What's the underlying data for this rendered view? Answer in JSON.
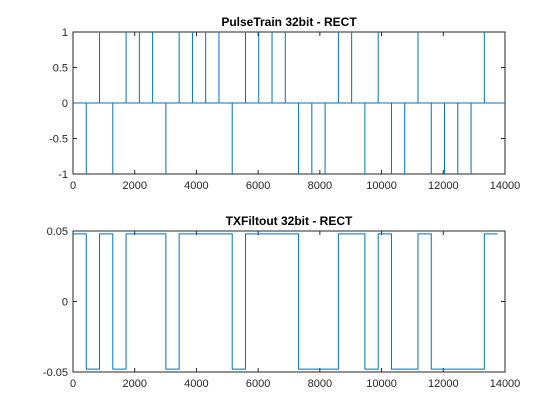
{
  "chart_data": [
    {
      "type": "line",
      "title": "PulseTrain 32bit - RECT",
      "xlabel": "",
      "ylabel": "",
      "xlim": [
        0,
        14000
      ],
      "ylim": [
        -1,
        1
      ],
      "xticks": [
        0,
        2000,
        4000,
        6000,
        8000,
        10000,
        12000,
        14000
      ],
      "xtick_labels": [
        "0",
        "2000",
        "4000",
        "6000",
        "8000",
        "10000",
        "12000",
        "14000"
      ],
      "yticks": [
        1,
        0.5,
        0,
        -0.5,
        -1
      ],
      "ytick_labels": [
        "1",
        "0.5",
        "0",
        "-0.5",
        "-1"
      ],
      "grid": false,
      "color": "#0072bd",
      "series": [
        {
          "pulses": [
            {
              "x": 430,
              "y": -1
            },
            {
              "x": 860,
              "y": 1
            },
            {
              "x": 1290,
              "y": -1
            },
            {
              "x": 1720,
              "y": 1
            },
            {
              "x": 2150,
              "y": 1
            },
            {
              "x": 2580,
              "y": 1
            },
            {
              "x": 3010,
              "y": -1
            },
            {
              "x": 3440,
              "y": 1
            },
            {
              "x": 3870,
              "y": 1
            },
            {
              "x": 4300,
              "y": 1
            },
            {
              "x": 4730,
              "y": 1
            },
            {
              "x": 5160,
              "y": -1
            },
            {
              "x": 5590,
              "y": 1
            },
            {
              "x": 6020,
              "y": 1
            },
            {
              "x": 6450,
              "y": 1
            },
            {
              "x": 6880,
              "y": 1
            },
            {
              "x": 7310,
              "y": -1
            },
            {
              "x": 7740,
              "y": -1
            },
            {
              "x": 8170,
              "y": -1
            },
            {
              "x": 8600,
              "y": 1
            },
            {
              "x": 9030,
              "y": 1
            },
            {
              "x": 9460,
              "y": -1
            },
            {
              "x": 9890,
              "y": 1
            },
            {
              "x": 10320,
              "y": -1
            },
            {
              "x": 10750,
              "y": -1
            },
            {
              "x": 11180,
              "y": 1
            },
            {
              "x": 11610,
              "y": -1
            },
            {
              "x": 12040,
              "y": -1
            },
            {
              "x": 12470,
              "y": -1
            },
            {
              "x": 12900,
              "y": -1
            },
            {
              "x": 13330,
              "y": 1
            }
          ]
        }
      ]
    },
    {
      "type": "line",
      "title": "TXFiltout 32bit - RECT",
      "xlabel": "",
      "ylabel": "",
      "xlim": [
        0,
        14000
      ],
      "ylim": [
        -0.05,
        0.05
      ],
      "xticks": [
        0,
        2000,
        4000,
        6000,
        8000,
        10000,
        12000,
        14000
      ],
      "xtick_labels": [
        "0",
        "2000",
        "4000",
        "6000",
        "8000",
        "10000",
        "12000",
        "14000"
      ],
      "yticks": [
        0.05,
        0,
        -0.05
      ],
      "ytick_labels": [
        "0.05",
        "0",
        "-0.05"
      ],
      "grid": false,
      "color": "#0072bd",
      "series": [
        {
          "x": [
            0,
            430,
            430,
            860,
            860,
            1290,
            1290,
            1720,
            1720,
            3010,
            3010,
            3440,
            3440,
            5160,
            5160,
            5590,
            5590,
            7310,
            7310,
            8600,
            8600,
            9460,
            9460,
            9890,
            9890,
            10320,
            10320,
            11180,
            11180,
            11610,
            11610,
            13330,
            13330,
            13760
          ],
          "y": [
            0.048,
            0.048,
            -0.048,
            -0.048,
            0.048,
            0.048,
            -0.048,
            -0.048,
            0.048,
            0.048,
            -0.048,
            -0.048,
            0.048,
            0.048,
            -0.048,
            -0.048,
            0.048,
            0.048,
            -0.048,
            -0.048,
            0.048,
            0.048,
            -0.048,
            -0.048,
            0.048,
            0.048,
            -0.048,
            -0.048,
            0.048,
            0.048,
            -0.048,
            -0.048,
            0.048,
            0.048
          ]
        }
      ]
    }
  ]
}
